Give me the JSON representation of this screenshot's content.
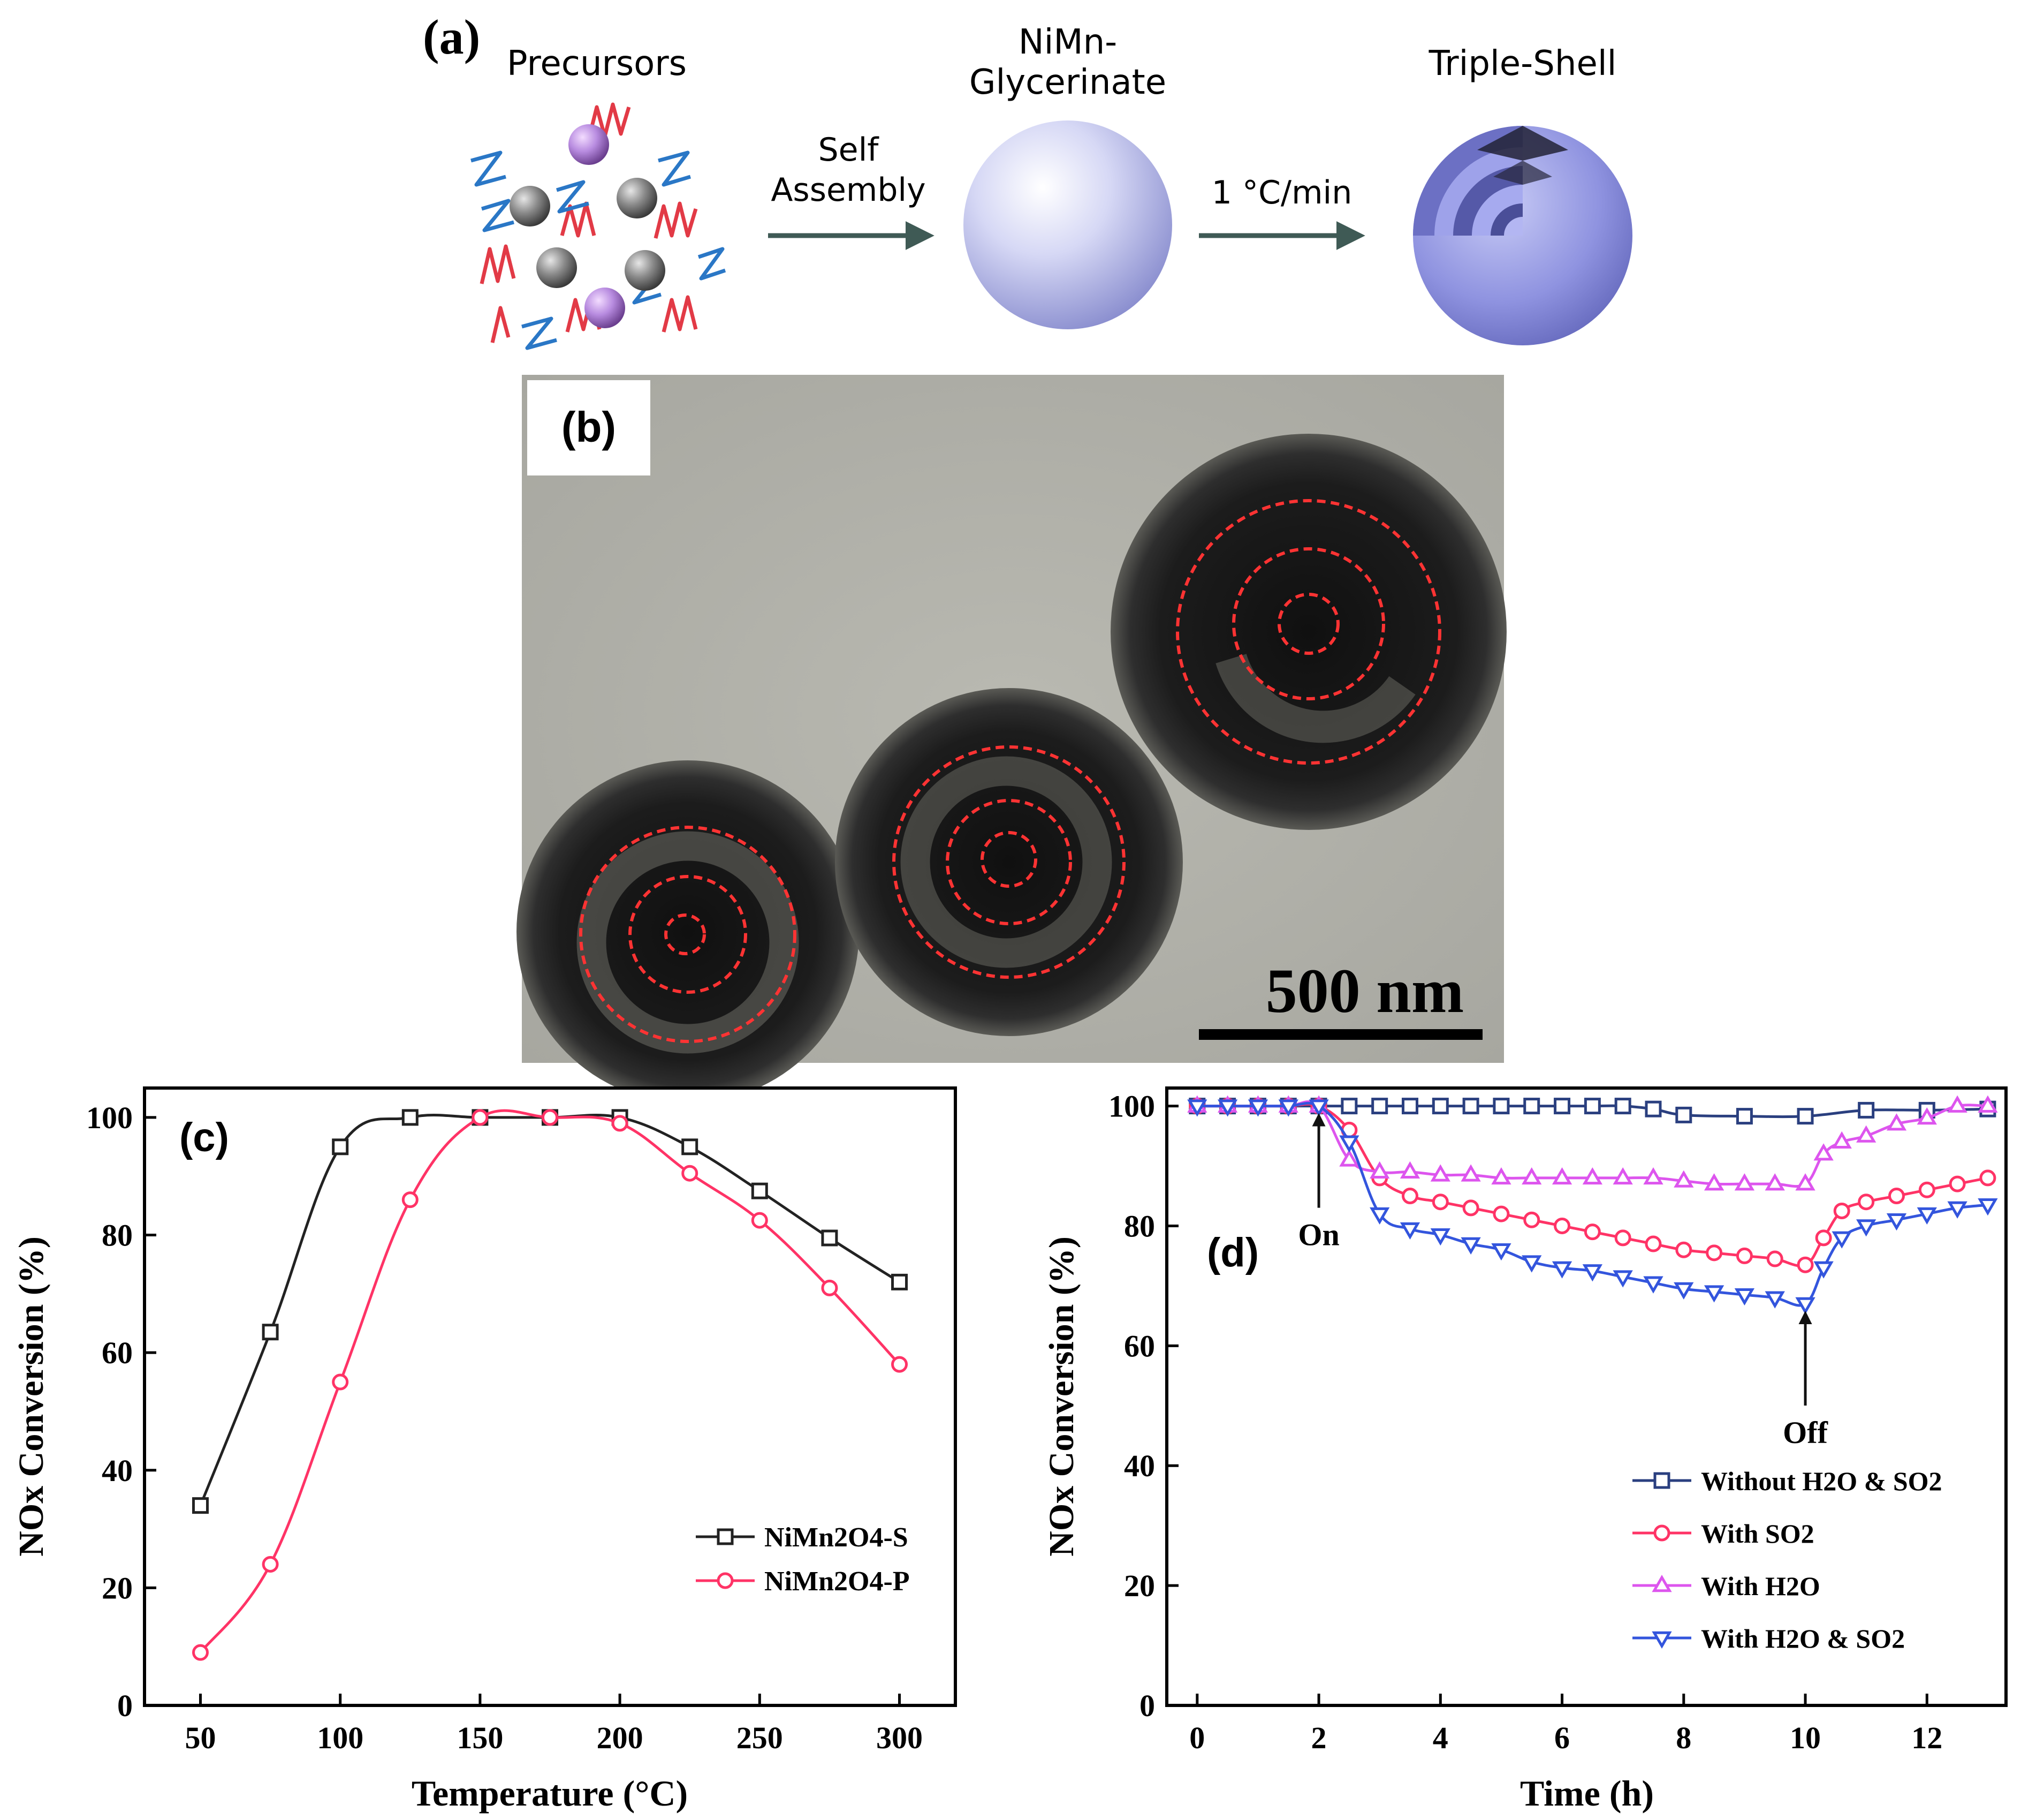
{
  "panel_a": {
    "label": "(a)",
    "precursors_label": "Precursors",
    "glycerinate_label_1": "NiMn-",
    "glycerinate_label_2": "Glycerinate",
    "triple_shell_label": "Triple-Shell",
    "arrow1_label_1": "Self",
    "arrow1_label_2": "Assembly",
    "arrow2_label": "1 °C/min"
  },
  "panel_b": {
    "label": "(b)",
    "scale_bar_label": "500 nm"
  },
  "colors": {
    "black_series": "#222222",
    "red_series": "#ff3366",
    "magenta_series": "#dd55ee",
    "blue_series": "#3355dd",
    "dark_blue_series": "#2a3f7f",
    "sphere": "#b3b6ee",
    "dashed_circle": "#ff3333"
  },
  "chart_data": [
    {
      "panel": "(c)",
      "type": "line",
      "xlabel": "Temperature (°C)",
      "ylabel": "NOx Conversion (%)",
      "xlim": [
        30,
        320
      ],
      "ylim": [
        0,
        105
      ],
      "xticks": [
        50,
        100,
        150,
        200,
        250,
        300
      ],
      "yticks": [
        0,
        20,
        40,
        60,
        80,
        100
      ],
      "legend": "bottom-right",
      "series": [
        {
          "name": "NiMn2O4-S",
          "marker": "square",
          "x": [
            50,
            75,
            100,
            125,
            150,
            175,
            200,
            225,
            250,
            275,
            300
          ],
          "values": [
            34,
            63.5,
            95,
            100,
            100,
            100,
            100,
            95,
            87.5,
            79.5,
            72
          ]
        },
        {
          "name": "NiMn2O4-P",
          "marker": "circle",
          "x": [
            50,
            75,
            100,
            125,
            150,
            175,
            200,
            225,
            250,
            275,
            300
          ],
          "values": [
            9,
            24,
            55,
            86,
            100,
            100,
            99,
            90.5,
            82.5,
            71,
            58
          ]
        }
      ]
    },
    {
      "panel": "(d)",
      "type": "line",
      "xlabel": "Time (h)",
      "ylabel": "NOx Conversion (%)",
      "xlim": [
        -0.5,
        13.3
      ],
      "ylim": [
        0,
        103
      ],
      "xticks": [
        0,
        2,
        4,
        6,
        8,
        10,
        12
      ],
      "yticks": [
        0,
        20,
        40,
        60,
        80,
        100
      ],
      "legend": "bottom-right",
      "annotations": [
        {
          "text": "On",
          "x": 2,
          "y": 100
        },
        {
          "text": "Off",
          "x": 10,
          "y": 67
        }
      ],
      "series": [
        {
          "name": "Without H2O & SO2",
          "marker": "square",
          "x": [
            0,
            0.5,
            1,
            1.5,
            2,
            2.5,
            3,
            3.5,
            4,
            4.5,
            5,
            5.5,
            6,
            6.5,
            7,
            7.5,
            8,
            9,
            10,
            11,
            12,
            13
          ],
          "values": [
            100,
            100,
            100,
            100,
            100,
            100,
            100,
            100,
            100,
            100,
            100,
            100,
            100,
            100,
            100,
            99.5,
            98.5,
            98.3,
            98.3,
            99.3,
            99.3,
            99.5
          ]
        },
        {
          "name": "With SO2",
          "marker": "circle",
          "x": [
            0,
            0.5,
            1,
            1.5,
            2,
            2.5,
            3,
            3.5,
            4,
            4.5,
            5,
            5.5,
            6,
            6.5,
            7,
            7.5,
            8,
            8.5,
            9,
            9.5,
            10,
            10.3,
            10.6,
            11,
            11.5,
            12,
            12.5,
            13
          ],
          "values": [
            100,
            100,
            100,
            100,
            100,
            96,
            88,
            85,
            84,
            83,
            82,
            81,
            80,
            79,
            78,
            77,
            76,
            75.5,
            75,
            74.5,
            73.5,
            78,
            82.5,
            84,
            85,
            86,
            87,
            88
          ]
        },
        {
          "name": "With H2O",
          "marker": "triangle-up",
          "x": [
            0,
            0.5,
            1,
            1.5,
            2,
            2.5,
            3,
            3.5,
            4,
            4.5,
            5,
            5.5,
            6,
            6.5,
            7,
            7.5,
            8,
            8.5,
            9,
            9.5,
            10,
            10.3,
            10.6,
            11,
            11.5,
            12,
            12.5,
            13
          ],
          "values": [
            100,
            100,
            100,
            100,
            100,
            91,
            89,
            89,
            88.5,
            88.5,
            88,
            88,
            88,
            88,
            88,
            88,
            87.5,
            87,
            87,
            87,
            87,
            92,
            94,
            95,
            97,
            98,
            100,
            100
          ]
        },
        {
          "name": "With H2O & SO2",
          "marker": "triangle-down",
          "x": [
            0,
            0.5,
            1,
            1.5,
            2,
            2.5,
            3,
            3.5,
            4,
            4.5,
            5,
            5.5,
            6,
            6.5,
            7,
            7.5,
            8,
            8.5,
            9,
            9.5,
            10,
            10.3,
            10.6,
            11,
            11.5,
            12,
            12.5,
            13
          ],
          "values": [
            100,
            100,
            100,
            100,
            100,
            94,
            82,
            79.5,
            78.5,
            77,
            76,
            74,
            73,
            72.5,
            71.5,
            70.5,
            69.5,
            69,
            68.5,
            68,
            67,
            73,
            78,
            80,
            81,
            82,
            83,
            83.5
          ]
        }
      ]
    }
  ]
}
